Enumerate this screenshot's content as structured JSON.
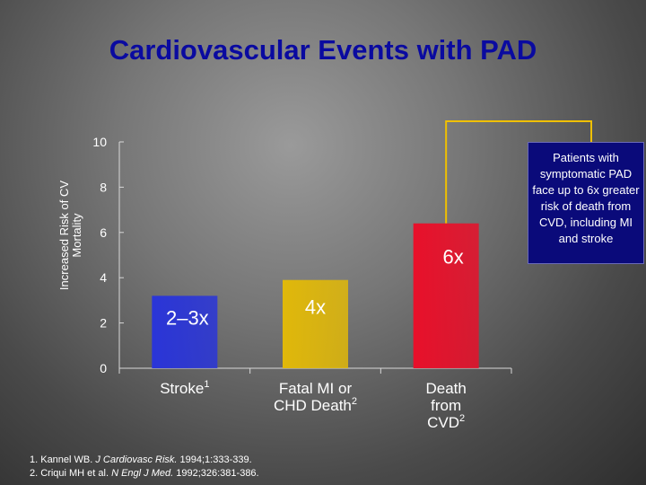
{
  "title": "Cardiovascular Events with PAD",
  "chart_data": {
    "type": "bar",
    "ylabel": "Increased Risk of CV Mortality",
    "ylim": [
      0,
      10
    ],
    "yticks": [
      "0",
      "2",
      "4",
      "6",
      "8",
      "10"
    ],
    "categories": [
      {
        "name": "Stroke",
        "sup": "1"
      },
      {
        "name": "Fatal MI or CHD Death",
        "sup": "2"
      },
      {
        "name": "Death from CVD",
        "sup": "2"
      }
    ],
    "values": [
      3.2,
      3.9,
      6.4
    ],
    "data_labels": [
      "2–3x",
      "4x",
      "6x"
    ],
    "colors": [
      "#2a35d8",
      "#e0b80a",
      "#e8102a"
    ]
  },
  "callout": {
    "text": "Patients with symptomatic PAD face up to 6x greater risk of death from CVD, including MI and stroke",
    "border_color": "#f0c000"
  },
  "references": [
    {
      "pre": "1. Kannel WB. ",
      "journal": "J Cardiovasc Risk.",
      "post": " 1994;1:333-339."
    },
    {
      "pre": "2. Criqui MH et al. ",
      "journal": "N Engl J Med.",
      "post": " 1992;326:381-386."
    }
  ]
}
